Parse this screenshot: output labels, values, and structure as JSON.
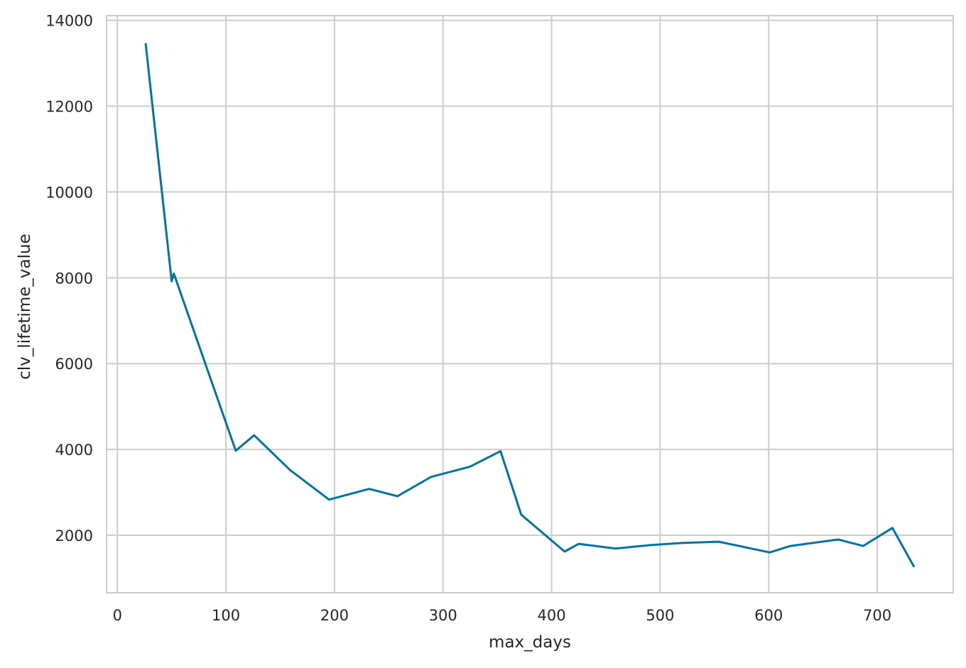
{
  "chart_data": {
    "type": "line",
    "title": "",
    "xlabel": "max_days",
    "ylabel": "clv_lifetime_value",
    "xlim": [
      -10,
      770
    ],
    "ylim": [
      660,
      14110
    ],
    "xticks": [
      0,
      100,
      200,
      300,
      400,
      500,
      600,
      700
    ],
    "yticks": [
      2000,
      4000,
      6000,
      8000,
      10000,
      12000,
      14000
    ],
    "grid": true,
    "line_color": "#0173a2",
    "grid_color": "#cccccc",
    "series": [
      {
        "x": [
          26,
          50,
          52,
          109,
          126,
          159,
          195,
          232,
          258,
          289,
          325,
          353,
          372,
          412,
          425,
          459,
          491,
          520,
          554,
          601,
          620,
          664,
          687,
          714,
          734
        ],
        "y": [
          13470,
          7920,
          8100,
          3970,
          4330,
          3520,
          2830,
          3080,
          2910,
          3360,
          3600,
          3960,
          2480,
          1620,
          1800,
          1690,
          1770,
          1820,
          1850,
          1600,
          1750,
          1900,
          1750,
          2170,
          1260
        ]
      }
    ]
  }
}
